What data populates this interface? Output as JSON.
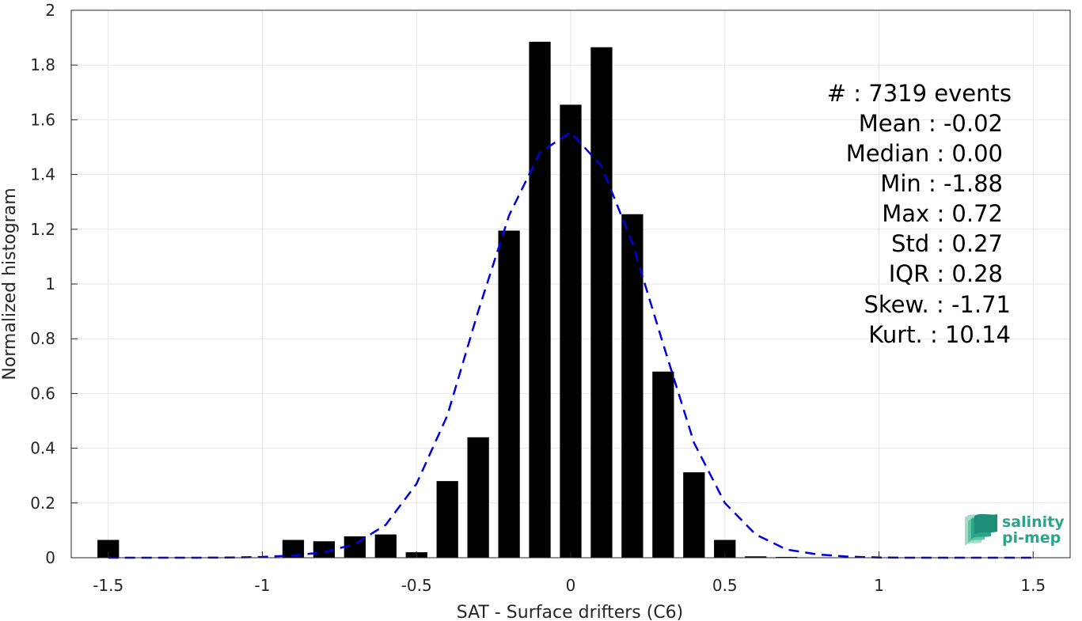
{
  "chart_data": {
    "type": "bar",
    "xlabel": "SAT - Surface drifters (C6)",
    "ylabel": "Normalized histogram",
    "xlim": [
      -1.62,
      1.62
    ],
    "ylim": [
      0,
      2
    ],
    "xticks": [
      -1.5,
      -1,
      -0.5,
      0,
      0.5,
      1,
      1.5
    ],
    "xtick_labels": [
      "-1.5",
      "-1",
      "-0.5",
      "0",
      "0.5",
      "1",
      "1.5"
    ],
    "yticks": [
      0,
      0.2,
      0.4,
      0.6,
      0.8,
      1,
      1.2,
      1.4,
      1.6,
      1.8,
      2
    ],
    "ytick_labels": [
      "0",
      "0.2",
      "0.4",
      "0.6",
      "0.8",
      "1",
      "1.2",
      "1.4",
      "1.6",
      "1.8",
      "2"
    ],
    "grid": true,
    "bar_color": "#000000",
    "bar_width": 0.07,
    "bars": [
      {
        "x": -1.5,
        "y": 0.065
      },
      {
        "x": -0.9,
        "y": 0.065
      },
      {
        "x": -0.8,
        "y": 0.06
      },
      {
        "x": -0.7,
        "y": 0.078
      },
      {
        "x": -0.6,
        "y": 0.085
      },
      {
        "x": -0.5,
        "y": 0.02
      },
      {
        "x": -0.4,
        "y": 0.28
      },
      {
        "x": -0.3,
        "y": 0.44
      },
      {
        "x": -0.2,
        "y": 1.195
      },
      {
        "x": -0.1,
        "y": 1.885
      },
      {
        "x": 0.0,
        "y": 1.655
      },
      {
        "x": 0.1,
        "y": 1.865
      },
      {
        "x": 0.2,
        "y": 1.255
      },
      {
        "x": 0.3,
        "y": 0.68
      },
      {
        "x": 0.4,
        "y": 0.312
      },
      {
        "x": 0.5,
        "y": 0.065
      },
      {
        "x": 0.6,
        "y": 0.005
      },
      {
        "x": 0.7,
        "y": 0.003
      }
    ],
    "fit_curve": {
      "color": "#0000dd",
      "style": "dashed",
      "x": [
        -1.5,
        -1.4,
        -1.3,
        -1.2,
        -1.1,
        -1.0,
        -0.9,
        -0.8,
        -0.7,
        -0.6,
        -0.5,
        -0.4,
        -0.3,
        -0.2,
        -0.1,
        0.0,
        0.1,
        0.2,
        0.3,
        0.4,
        0.5,
        0.6,
        0.7,
        0.8,
        0.9,
        1.0,
        1.1,
        1.2,
        1.3,
        1.4,
        1.5
      ],
      "y": [
        0.0,
        0.0,
        0.0,
        0.0,
        0.001,
        0.003,
        0.008,
        0.02,
        0.05,
        0.12,
        0.27,
        0.52,
        0.9,
        1.25,
        1.48,
        1.555,
        1.43,
        1.15,
        0.78,
        0.42,
        0.2,
        0.085,
        0.03,
        0.012,
        0.004,
        0.001,
        0.0,
        0.0,
        0.0,
        0.0,
        0.0
      ]
    },
    "stats": [
      {
        "label": "#  : 7319 events"
      },
      {
        "label": "Mean : -0.02"
      },
      {
        "label": "Median : 0.00"
      },
      {
        "label": "Min : -1.88"
      },
      {
        "label": "Max : 0.72"
      },
      {
        "label": "Std : 0.27"
      },
      {
        "label": "IQR : 0.28"
      },
      {
        "label": "Skew. : -1.71"
      },
      {
        "label": "Kurt. : 10.14"
      }
    ]
  },
  "logo": {
    "line1": "salinity",
    "line2": "pi-mep",
    "color": "#2aa58a"
  }
}
